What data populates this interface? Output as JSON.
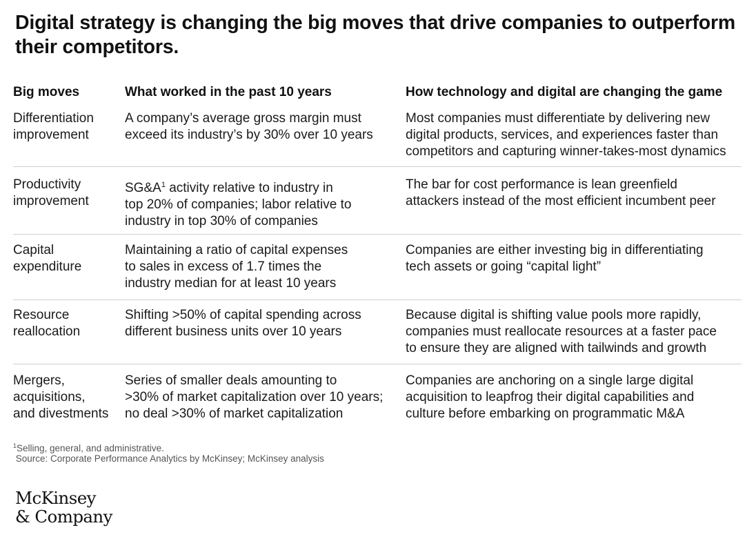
{
  "title": "Digital strategy is changing the big moves that drive companies to outperform their competitors.",
  "table": {
    "headers": [
      "Big moves",
      "What worked in the past 10 years",
      "How technology and digital are changing the game"
    ],
    "rows": [
      {
        "move": "Differentiation\nimprovement",
        "past": "A company’s average gross margin must\nexceed its industry’s by 30% over 10 years",
        "change": "Most companies must differentiate by delivering new\ndigital products, services, and experiences faster than\ncompetitors and capturing winner-takes-most dynamics"
      },
      {
        "move": "Productivity\nimprovement",
        "past_prefix": "SG&A",
        "past_sup": "1",
        "past_rest": " activity relative to industry in\ntop 20% of companies; labor relative to\nindustry in top 30% of companies",
        "change": "The bar for cost performance is lean greenfield\nattackers instead of the most efficient incumbent peer"
      },
      {
        "move": "Capital\nexpenditure",
        "past": "Maintaining a ratio of capital expenses\nto sales in excess of 1.7 times the\nindustry median for at least 10 years",
        "change": "Companies are either investing big in differentiating\ntech assets or going “capital light”"
      },
      {
        "move": "Resource\nreallocation",
        "past": "Shifting >50% of capital spending across\ndifferent business units over 10 years",
        "change": "Because digital is shifting value pools more rapidly,\ncompanies must reallocate resources at a faster pace\nto ensure they are aligned with tailwinds and growth"
      },
      {
        "move": "Mergers,\nacquisitions,\nand divestments",
        "past": "Series of smaller deals amounting to\n>30% of market capitalization over 10 years;\nno deal >30% of market capitalization",
        "change": "Companies are anchoring on a single large digital\nacquisition to leapfrog their digital capabilities and\nculture before embarking on programmatic M&A"
      }
    ]
  },
  "footnote": {
    "marker": "1",
    "text": "Selling, general, and administrative.",
    "source": " Source: Corporate Performance Analytics by McKinsey; McKinsey analysis"
  },
  "logo": {
    "line1": "McKinsey",
    "line2": "& Company"
  }
}
